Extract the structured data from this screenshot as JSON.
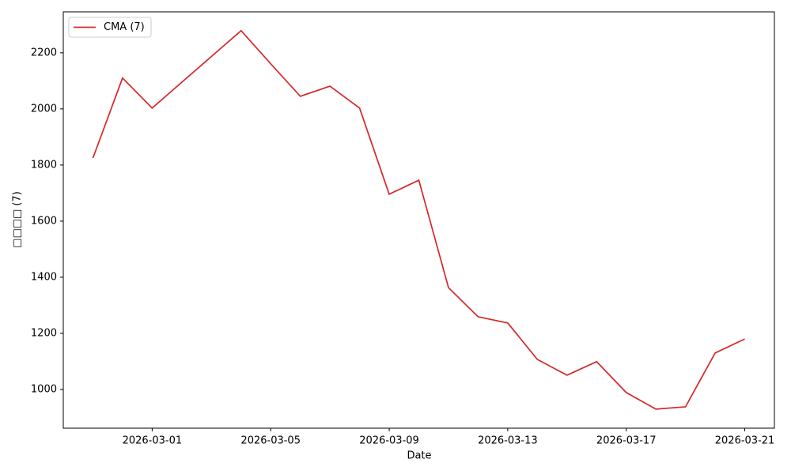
{
  "chart_data": {
    "type": "line",
    "xlabel": "Date",
    "ylabel": "□□□□ (7)",
    "x": [
      "2026-02-27",
      "2026-02-28",
      "2026-03-01",
      "2026-03-02",
      "2026-03-03",
      "2026-03-04",
      "2026-03-05",
      "2026-03-06",
      "2026-03-07",
      "2026-03-08",
      "2026-03-09",
      "2026-03-10",
      "2026-03-11",
      "2026-03-12",
      "2026-03-13",
      "2026-03-14",
      "2026-03-15",
      "2026-03-16",
      "2026-03-17",
      "2026-03-18",
      "2026-03-19",
      "2026-03-20",
      "2026-03-21"
    ],
    "series": [
      {
        "name": "CMA (7)",
        "color": "#d62728",
        "values": [
          1825,
          2110,
          2003,
          2095,
          2187,
          2279,
          2161,
          2045,
          2081,
          2003,
          1696,
          1746,
          1363,
          1259,
          1237,
          1107,
          1051,
          1099,
          989,
          930,
          938,
          1130,
          1180
        ]
      }
    ],
    "xlim": [
      "2026-02-26",
      "2026-03-22"
    ],
    "xticks": [
      "2026-03-01",
      "2026-03-05",
      "2026-03-09",
      "2026-03-13",
      "2026-03-17",
      "2026-03-21"
    ],
    "ylim": [
      862,
      2346
    ],
    "yticks": [
      1000,
      1200,
      1400,
      1600,
      1800,
      2000,
      2200
    ],
    "legend": "upper left"
  }
}
